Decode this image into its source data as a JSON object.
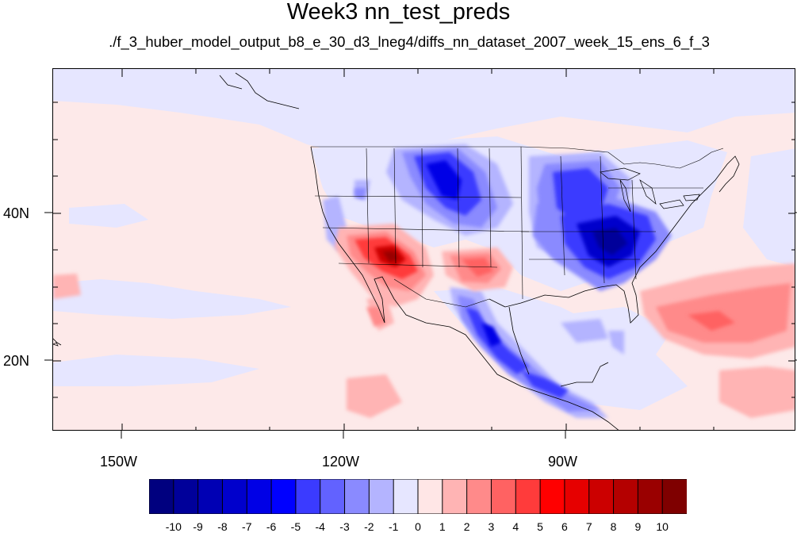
{
  "title": "Week3 nn_test_preds",
  "subtitle": "./f_3_huber_model_output_b8_e_30_d3_lneg4/diffs_nn_dataset_2007_week_15_ens_6_f_3",
  "map": {
    "lon_labels": [
      "150W",
      "120W",
      "90W"
    ],
    "lat_labels": [
      "40N",
      "20N"
    ],
    "lon_range": [
      -160,
      -60
    ],
    "lat_range": [
      11,
      60
    ]
  },
  "colorbar": {
    "levels": [
      "-10",
      "-9",
      "-8",
      "-7",
      "-6",
      "-5",
      "-4",
      "-3",
      "-2",
      "-1",
      "0",
      "1",
      "2",
      "3",
      "4",
      "5",
      "6",
      "7",
      "8",
      "9",
      "10"
    ],
    "colors": [
      "#00007f",
      "#00009a",
      "#0000b4",
      "#0000cc",
      "#0000e6",
      "#0000ff",
      "#3b3bff",
      "#6262ff",
      "#8a8aff",
      "#b4b4ff",
      "#e6e6ff",
      "#ffe6e6",
      "#ffb4b4",
      "#ff8a8a",
      "#ff6262",
      "#ff3b3b",
      "#ff0000",
      "#e60000",
      "#cc0000",
      "#b40000",
      "#9a0000",
      "#7f0000"
    ]
  }
}
